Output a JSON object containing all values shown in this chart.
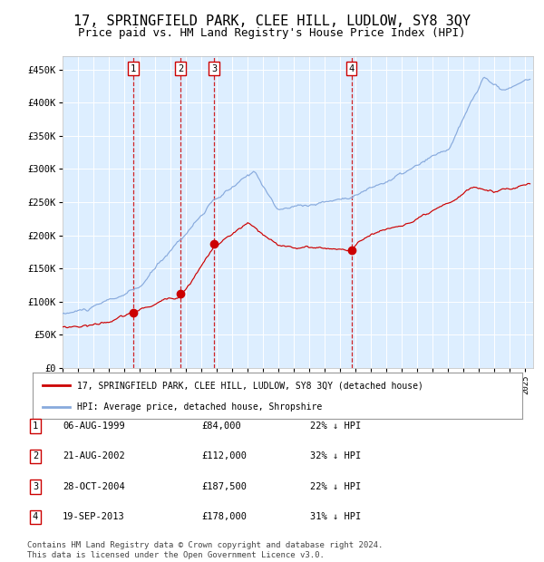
{
  "title": "17, SPRINGFIELD PARK, CLEE HILL, LUDLOW, SY8 3QY",
  "subtitle": "Price paid vs. HM Land Registry's House Price Index (HPI)",
  "title_fontsize": 11,
  "subtitle_fontsize": 9,
  "background_color": "#ffffff",
  "plot_bg_color": "#ddeeff",
  "grid_color": "#ffffff",
  "ylabel_ticks": [
    "£0",
    "£50K",
    "£100K",
    "£150K",
    "£200K",
    "£250K",
    "£300K",
    "£350K",
    "£400K",
    "£450K"
  ],
  "ylabel_values": [
    0,
    50000,
    100000,
    150000,
    200000,
    250000,
    300000,
    350000,
    400000,
    450000
  ],
  "ylim": [
    0,
    470000
  ],
  "xlim_start": 1995.0,
  "xlim_end": 2025.5,
  "sale_dates_decimal": [
    1999.59,
    2002.64,
    2004.82,
    2013.72
  ],
  "sale_prices": [
    84000,
    112000,
    187500,
    178000
  ],
  "sale_labels": [
    "1",
    "2",
    "3",
    "4"
  ],
  "vline_color": "#cc0000",
  "sale_marker_color": "#cc0000",
  "red_line_color": "#cc0000",
  "blue_line_color": "#88aadd",
  "legend_red_label": "17, SPRINGFIELD PARK, CLEE HILL, LUDLOW, SY8 3QY (detached house)",
  "legend_blue_label": "HPI: Average price, detached house, Shropshire",
  "table_rows": [
    {
      "label": "1",
      "date": "06-AUG-1999",
      "price": "£84,000",
      "hpi": "22% ↓ HPI"
    },
    {
      "label": "2",
      "date": "21-AUG-2002",
      "price": "£112,000",
      "hpi": "32% ↓ HPI"
    },
    {
      "label": "3",
      "date": "28-OCT-2004",
      "price": "£187,500",
      "hpi": "22% ↓ HPI"
    },
    {
      "label": "4",
      "date": "19-SEP-2013",
      "price": "£178,000",
      "hpi": "31% ↓ HPI"
    }
  ],
  "footnote": "Contains HM Land Registry data © Crown copyright and database right 2024.\nThis data is licensed under the Open Government Licence v3.0.",
  "footnote_fontsize": 6.5
}
